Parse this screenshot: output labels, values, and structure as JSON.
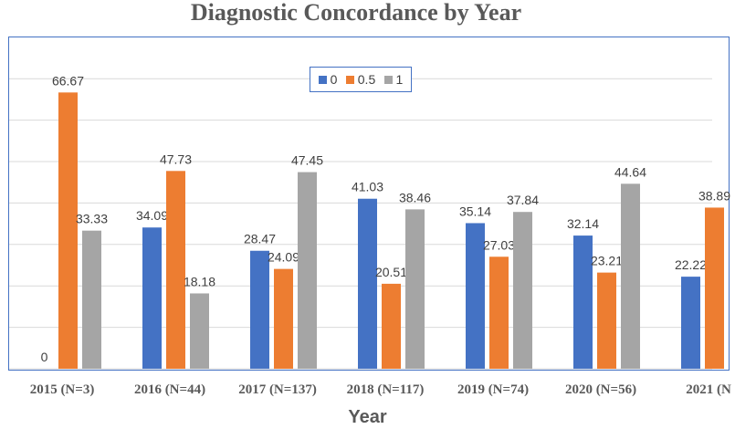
{
  "chart_data": {
    "type": "bar",
    "title": "Diagnostic Concordance by Year",
    "xlabel": "Year",
    "ylabel": "",
    "ylim": [
      0,
      70
    ],
    "grid": true,
    "legend_position": "top-center",
    "categories": [
      "2015 (N=3)",
      "2016 (N=44)",
      "2017 (N=137)",
      "2018 (N=117)",
      "2019 (N=74)",
      "2020 (N=56)",
      "2021 (N"
    ],
    "series": [
      {
        "name": "0",
        "color": "#4472c4",
        "values": [
          0,
          34.09,
          28.47,
          41.03,
          35.14,
          32.14,
          22.22
        ]
      },
      {
        "name": "0.5",
        "color": "#ed7d31",
        "values": [
          66.67,
          47.73,
          24.09,
          20.51,
          27.03,
          23.21,
          38.89
        ]
      },
      {
        "name": "1",
        "color": "#a5a5a5",
        "values": [
          33.33,
          18.18,
          47.45,
          38.46,
          37.84,
          44.64,
          null
        ]
      }
    ],
    "data_labels": [
      [
        "0",
        "34.09",
        "28.47",
        "41.03",
        "35.14",
        "32.14",
        "22.22"
      ],
      [
        "66.67",
        "47.73",
        "24.09",
        "20.51",
        "27.03",
        "23.21",
        "38.89"
      ],
      [
        "33.33",
        "18.18",
        "47.45",
        "38.46",
        "37.84",
        "44.64",
        ""
      ]
    ]
  }
}
